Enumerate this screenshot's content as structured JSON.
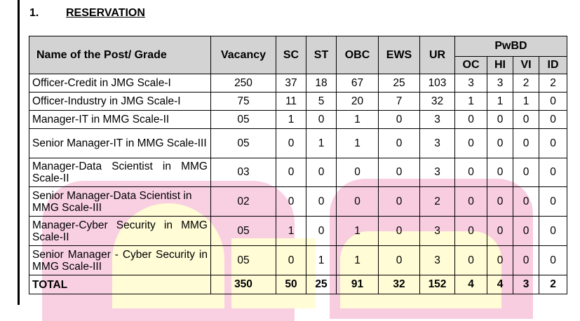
{
  "section": {
    "number": "1.",
    "title": "RESERVATION"
  },
  "table": {
    "headers": {
      "name": "Name of the Post/ Grade",
      "vacancy": "Vacancy",
      "sc": "SC",
      "st": "ST",
      "obc": "OBC",
      "ews": "EWS",
      "ur": "UR",
      "pwbd": "PwBD",
      "pwbd_sub": [
        "OC",
        "HI",
        "VI",
        "ID"
      ]
    },
    "rows": [
      {
        "name": "Officer-Credit in JMG Scale-I",
        "vacancy": "250",
        "sc": "37",
        "st": "18",
        "obc": "67",
        "ews": "25",
        "ur": "103",
        "oc": "3",
        "hi": "3",
        "vi": "2",
        "id": "2"
      },
      {
        "name": "Officer-Industry in JMG Scale-I",
        "vacancy": "75",
        "sc": "11",
        "st": "5",
        "obc": "20",
        "ews": "7",
        "ur": "32",
        "oc": "1",
        "hi": "1",
        "vi": "1",
        "id": "0"
      },
      {
        "name": "Manager-IT in MMG Scale-II",
        "vacancy": "05",
        "sc": "1",
        "st": "0",
        "obc": "1",
        "ews": "0",
        "ur": "3",
        "oc": "0",
        "hi": "0",
        "vi": "0",
        "id": "0"
      },
      {
        "name": "Senior Manager-IT in MMG Scale-III",
        "vacancy": "05",
        "sc": "0",
        "st": "1",
        "obc": "1",
        "ews": "0",
        "ur": "3",
        "oc": "0",
        "hi": "0",
        "vi": "0",
        "id": "0"
      },
      {
        "name": "Manager-Data Scientist in MMG Scale-II",
        "vacancy": "03",
        "sc": "0",
        "st": "0",
        "obc": "0",
        "ews": "0",
        "ur": "3",
        "oc": "0",
        "hi": "0",
        "vi": "0",
        "id": "0"
      },
      {
        "name": "Senior Manager-Data Scientist in MMG Scale-III",
        "vacancy": "02",
        "sc": "0",
        "st": "0",
        "obc": "0",
        "ews": "0",
        "ur": "2",
        "oc": "0",
        "hi": "0",
        "vi": "0",
        "id": "0"
      },
      {
        "name": "Manager-Cyber Security in MMG Scale-II",
        "vacancy": "05",
        "sc": "1",
        "st": "0",
        "obc": "1",
        "ews": "0",
        "ur": "3",
        "oc": "0",
        "hi": "0",
        "vi": "0",
        "id": "0"
      },
      {
        "name": "Senior Manager - Cyber Security in MMG Scale-III",
        "vacancy": "05",
        "sc": "0",
        "st": "1",
        "obc": "1",
        "ews": "0",
        "ur": "3",
        "oc": "0",
        "hi": "0",
        "vi": "0",
        "id": "0"
      }
    ],
    "total": {
      "name": "TOTAL",
      "vacancy": "350",
      "sc": "50",
      "st": "25",
      "obc": "91",
      "ews": "32",
      "ur": "152",
      "oc": "4",
      "hi": "4",
      "vi": "3",
      "id": "2"
    }
  },
  "colors": {
    "header_bg": "#d3d3d3",
    "watermark_pink": "#f9cde0",
    "watermark_yellow": "#fffcd6"
  }
}
